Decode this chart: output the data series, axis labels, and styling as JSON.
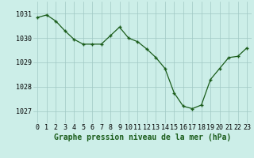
{
  "x": [
    0,
    1,
    2,
    3,
    4,
    5,
    6,
    7,
    8,
    9,
    10,
    11,
    12,
    13,
    14,
    15,
    16,
    17,
    18,
    19,
    20,
    21,
    22,
    23
  ],
  "y": [
    1030.85,
    1030.95,
    1030.7,
    1030.3,
    1029.95,
    1029.75,
    1029.75,
    1029.75,
    1030.1,
    1030.45,
    1030.0,
    1029.85,
    1029.55,
    1029.2,
    1028.75,
    1027.75,
    1027.2,
    1027.1,
    1027.25,
    1028.3,
    1028.75,
    1029.2,
    1029.25,
    1029.6
  ],
  "line_color": "#1a5c1a",
  "marker_color": "#1a5c1a",
  "bg_color": "#cceee8",
  "grid_color": "#a0c8c4",
  "xlabel": "Graphe pression niveau de la mer (hPa)",
  "xlabel_fontsize": 7,
  "tick_fontsize": 6,
  "ylim": [
    1026.5,
    1031.5
  ],
  "yticks": [
    1027,
    1028,
    1029,
    1030,
    1031
  ],
  "xticks": [
    0,
    1,
    2,
    3,
    4,
    5,
    6,
    7,
    8,
    9,
    10,
    11,
    12,
    13,
    14,
    15,
    16,
    17,
    18,
    19,
    20,
    21,
    22,
    23
  ]
}
